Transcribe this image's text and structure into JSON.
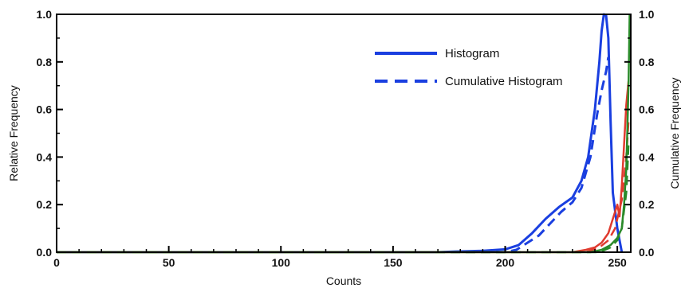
{
  "chart_data": {
    "type": "line",
    "xlabel": "Counts",
    "ylabel": "Relative Frequency",
    "y2label": "Cumulative Frequency",
    "xlim": [
      0,
      256
    ],
    "ylim": [
      0,
      1
    ],
    "y2lim": [
      0,
      1
    ],
    "x_ticks": [
      0,
      50,
      100,
      150,
      200,
      250
    ],
    "y_ticks": [
      0.0,
      0.2,
      0.4,
      0.6,
      0.8,
      1.0
    ],
    "y_tick_labels": [
      "0.0",
      "0.2",
      "0.4",
      "0.6",
      "0.8",
      "1.0"
    ],
    "y2_ticks": [
      0.0,
      0.2,
      0.4,
      0.6,
      0.8,
      1.0
    ],
    "y2_tick_labels": [
      "0.0",
      "0.2",
      "0.4",
      "0.6",
      "0.8",
      "1.0"
    ],
    "grid": false,
    "legend_position": "top-right",
    "legend": [
      {
        "label": "Histogram",
        "style": "solid",
        "color": "#1a3fe0"
      },
      {
        "label": "Cumulative Histogram",
        "style": "dashed",
        "color": "#1a3fe0"
      }
    ],
    "series": [
      {
        "color": "#1a3fe0",
        "style": "solid",
        "x": [
          0,
          170,
          178,
          190,
          200,
          206,
          212,
          218,
          224,
          230,
          234,
          237,
          240,
          242,
          243,
          244,
          245,
          246,
          247,
          248,
          250,
          252
        ],
        "y": [
          0.0,
          0.0,
          0.003,
          0.006,
          0.012,
          0.03,
          0.08,
          0.14,
          0.19,
          0.23,
          0.3,
          0.4,
          0.6,
          0.8,
          0.93,
          1.0,
          0.995,
          0.9,
          0.55,
          0.25,
          0.1,
          0.0
        ]
      },
      {
        "color": "#1a3fe0",
        "style": "dashed",
        "x": [
          0,
          200,
          205,
          210,
          215,
          220,
          225,
          230,
          234,
          238,
          241,
          243,
          245,
          246
        ],
        "y": [
          0.0,
          0.0,
          0.01,
          0.04,
          0.07,
          0.12,
          0.17,
          0.21,
          0.27,
          0.4,
          0.58,
          0.68,
          0.76,
          0.82
        ]
      },
      {
        "color": "#e03a2e",
        "style": "solid",
        "x": [
          0,
          230,
          236,
          240,
          243,
          246,
          248,
          250,
          251,
          252,
          253,
          254,
          255
        ],
        "y": [
          0.0,
          0.0,
          0.01,
          0.02,
          0.04,
          0.08,
          0.14,
          0.2,
          0.15,
          0.28,
          0.45,
          0.62,
          0.72
        ]
      },
      {
        "color": "#e03a2e",
        "style": "dashed",
        "x": [
          0,
          236,
          242,
          246,
          249,
          252,
          254,
          255
        ],
        "y": [
          0.0,
          0.0,
          0.02,
          0.05,
          0.1,
          0.22,
          0.4,
          0.55
        ]
      },
      {
        "color": "#2a8a2a",
        "style": "solid",
        "x": [
          0,
          238,
          243,
          247,
          250,
          252,
          253,
          254,
          255,
          255.5
        ],
        "y": [
          0.0,
          0.0,
          0.01,
          0.03,
          0.06,
          0.1,
          0.2,
          0.35,
          0.7,
          1.0
        ]
      },
      {
        "color": "#2a8a2a",
        "style": "dashed",
        "x": [
          0,
          242,
          247,
          250,
          252,
          254,
          255
        ],
        "y": [
          0.0,
          0.0,
          0.02,
          0.05,
          0.1,
          0.25,
          0.45
        ]
      }
    ]
  }
}
